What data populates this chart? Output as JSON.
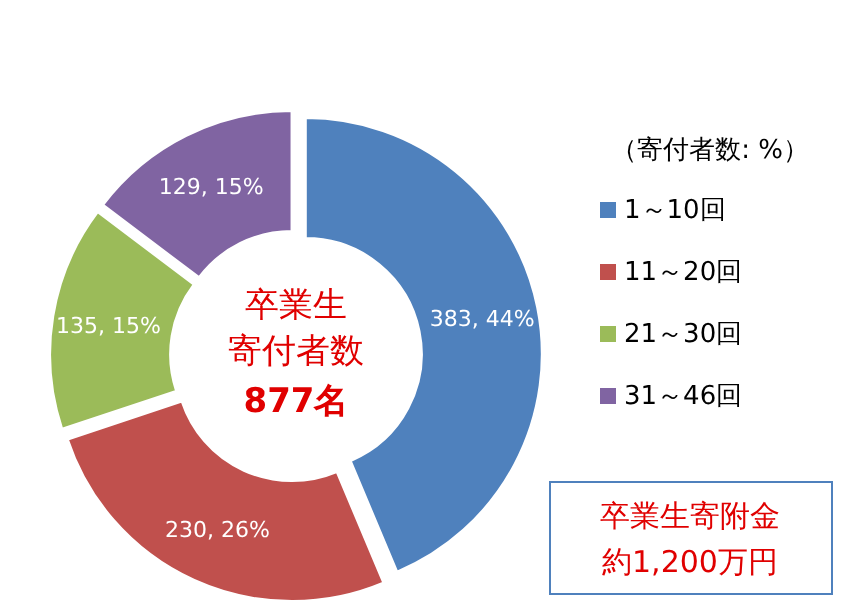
{
  "chart_data": {
    "type": "donut",
    "categories": [
      "1～10回",
      "11～20回",
      "21～30回",
      "31～46回"
    ],
    "values": [
      383,
      230,
      135,
      129
    ],
    "colors": [
      "#4f81bd",
      "#c0504d",
      "#9bbb59",
      "#8064a2"
    ],
    "value_labels": [
      "383, 44%",
      "230, 26%",
      "135, 15%",
      "129, 15%"
    ],
    "legend_title": "（寄付者数: %）",
    "legend": "right",
    "annotations": [
      "卒業生",
      "寄付者数",
      "877名",
      "卒業生寄附金",
      "約1,200万円"
    ]
  }
}
